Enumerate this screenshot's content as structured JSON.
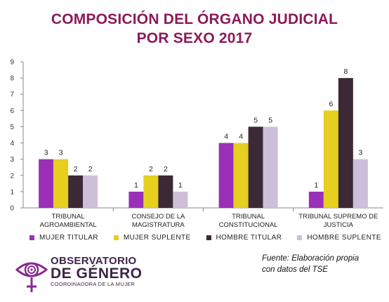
{
  "title_line1": "COMPOSICIÓN DEL ÓRGANO JUDICIAL",
  "title_line2": "POR SEXO 2017",
  "chart_data": {
    "type": "bar",
    "title": "COMPOSICIÓN DEL ÓRGANO JUDICIAL POR SEXO 2017",
    "categories": [
      [
        "TRIBUNAL",
        "AGROAMBIENTAL"
      ],
      [
        "CONSEJO DE LA",
        "MAGISTRATURA"
      ],
      [
        "TRIBUNAL",
        "CONSTITUCIONAL"
      ],
      [
        "TRIBUNAL SUPREMO DE",
        "JUSTICIA"
      ]
    ],
    "series": [
      {
        "name": "MUJER TITULAR",
        "color": "#9b30b8",
        "values": [
          3,
          1,
          4,
          1
        ]
      },
      {
        "name": "MUJER SUPLENTE",
        "color": "#e6cf1e",
        "values": [
          3,
          2,
          4,
          6
        ]
      },
      {
        "name": "HOMBRE TITULAR",
        "color": "#3b2a35",
        "values": [
          2,
          2,
          5,
          8
        ]
      },
      {
        "name": "HOMBRE SUPLENTE",
        "color": "#cdbfd9",
        "values": [
          2,
          1,
          5,
          3
        ]
      }
    ],
    "ylim": [
      0,
      9
    ],
    "yticks": [
      0,
      1,
      2,
      3,
      4,
      5,
      6,
      7,
      8,
      9
    ],
    "grid": false,
    "legend_position": "bottom"
  },
  "logo": {
    "line1": "OBSERVATORIO",
    "line2": "DE GÉNERO",
    "line3": "COORDINADORA DE LA MUJER"
  },
  "source": {
    "line1": "Fuente: Elaboración propia",
    "line2": "con datos  del TSE"
  }
}
